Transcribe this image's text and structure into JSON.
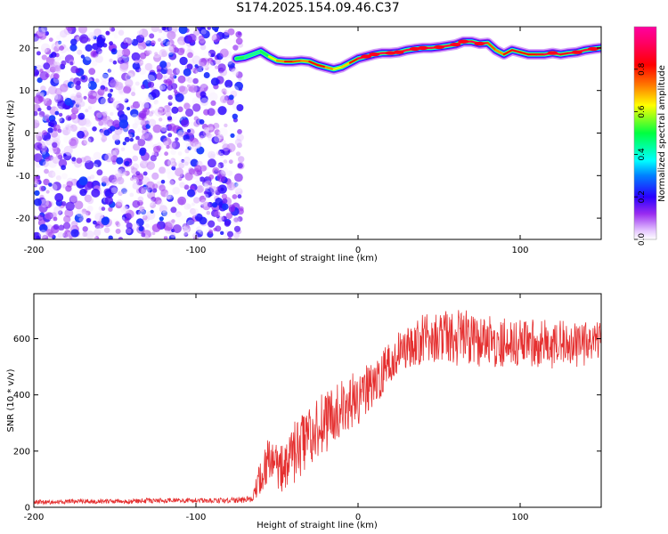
{
  "title": "S174.2025.154.09.46.C37",
  "colors": {
    "snr_line": "#e53030",
    "axis": "#000000"
  },
  "chart_data": [
    {
      "type": "heatmap",
      "xlabel": "Height of straight line (km)",
      "ylabel": "Frequency (Hz)",
      "xlim": [
        -200,
        150
      ],
      "ylim": [
        -25,
        25
      ],
      "x_ticks": [
        -200,
        -100,
        0,
        100
      ],
      "x_tick_labels": [
        "-200",
        "-100",
        "0",
        "100"
      ],
      "y_ticks": [
        -20,
        -10,
        0,
        10,
        20
      ],
      "y_tick_labels": [
        "-20",
        "-10",
        "0",
        "10",
        "20"
      ],
      "colorbar": {
        "label": "Normalized spectral amplitude",
        "range": [
          0,
          1
        ],
        "ticks": [
          0.0,
          0.2,
          0.4,
          0.6,
          0.8
        ],
        "tick_labels": [
          "0.0",
          "0.2",
          "0.4",
          "0.6",
          "0.8"
        ],
        "colormap": "rainbow (white-magenta-blue-cyan-green-yellow-red-pink)"
      },
      "noise_region": {
        "x_range": [
          -200,
          -72
        ],
        "y_range": [
          -25,
          25
        ],
        "amplitude": [
          0.0,
          0.25
        ]
      },
      "ridge": {
        "x": [
          -75,
          -70,
          -65,
          -60,
          -55,
          -50,
          -45,
          -40,
          -35,
          -30,
          -25,
          -20,
          -15,
          -10,
          -5,
          0,
          5,
          10,
          15,
          20,
          25,
          30,
          35,
          40,
          45,
          50,
          55,
          60,
          65,
          70,
          75,
          80,
          85,
          90,
          95,
          100,
          105,
          110,
          115,
          120,
          125,
          130,
          135,
          140,
          145,
          150
        ],
        "freq": [
          17.5,
          17.8,
          18.5,
          19.2,
          18.0,
          17.0,
          16.8,
          16.8,
          17.0,
          16.8,
          16.0,
          15.5,
          15.0,
          15.5,
          16.5,
          17.5,
          18.0,
          18.5,
          18.8,
          18.8,
          19.0,
          19.5,
          19.8,
          20.0,
          20.0,
          20.2,
          20.5,
          20.8,
          21.5,
          21.5,
          21.0,
          21.2,
          19.5,
          18.5,
          19.5,
          19.0,
          18.5,
          18.5,
          18.5,
          18.8,
          18.5,
          18.8,
          19.0,
          19.5,
          19.8,
          20.0
        ],
        "amplitude": [
          0.6,
          0.4,
          0.5,
          0.4,
          0.6,
          0.7,
          0.8,
          0.9,
          0.7,
          0.8,
          0.9,
          0.8,
          0.7,
          0.6,
          0.8,
          0.9,
          1.0,
          1.0,
          0.9,
          1.0,
          1.0,
          0.9,
          1.0,
          1.0,
          0.9,
          1.0,
          0.9,
          1.0,
          1.0,
          0.9,
          1.0,
          0.9,
          0.7,
          0.8,
          0.9,
          0.9,
          0.8,
          0.9,
          0.9,
          1.0,
          0.9,
          0.9,
          1.0,
          0.9,
          1.0,
          0.9
        ]
      }
    },
    {
      "type": "line",
      "xlabel": "Height of straight line (km)",
      "ylabel": "SNR (10 * v/v)",
      "xlim": [
        -200,
        150
      ],
      "ylim": [
        0,
        760
      ],
      "x_ticks": [
        -200,
        -100,
        0,
        100
      ],
      "x_tick_labels": [
        "-200",
        "-100",
        "0",
        "100"
      ],
      "y_ticks": [
        0,
        200,
        400,
        600
      ],
      "y_tick_labels": [
        "0",
        "200",
        "400",
        "600"
      ],
      "series": [
        {
          "x": [
            -200,
            -180,
            -160,
            -140,
            -120,
            -100,
            -80,
            -65,
            -60,
            -55,
            -50,
            -45,
            -40,
            -35,
            -30,
            -25,
            -20,
            -15,
            -10,
            -5,
            0,
            5,
            10,
            15,
            20,
            25,
            30,
            35,
            40,
            45,
            50,
            55,
            60,
            65,
            70,
            75,
            80,
            85,
            90,
            95,
            100,
            105,
            110,
            115,
            120,
            125,
            130,
            135,
            140,
            145,
            150
          ],
          "mean": [
            18,
            20,
            22,
            22,
            24,
            24,
            25,
            28,
            120,
            160,
            140,
            130,
            190,
            220,
            260,
            290,
            300,
            320,
            360,
            380,
            390,
            420,
            440,
            480,
            510,
            550,
            570,
            580,
            600,
            600,
            600,
            610,
            600,
            610,
            600,
            590,
            600,
            580,
            590,
            580,
            590,
            590,
            580,
            590,
            570,
            590,
            580,
            580,
            580,
            590,
            600
          ],
          "amp": [
            8,
            8,
            9,
            9,
            9,
            9,
            10,
            12,
            70,
            90,
            80,
            90,
            110,
            110,
            110,
            110,
            110,
            100,
            100,
            100,
            100,
            90,
            80,
            80,
            80,
            80,
            70,
            80,
            90,
            90,
            90,
            90,
            100,
            100,
            90,
            90,
            90,
            90,
            90,
            90,
            80,
            80,
            90,
            80,
            80,
            80,
            80,
            80,
            80,
            70,
            60
          ]
        }
      ]
    }
  ]
}
